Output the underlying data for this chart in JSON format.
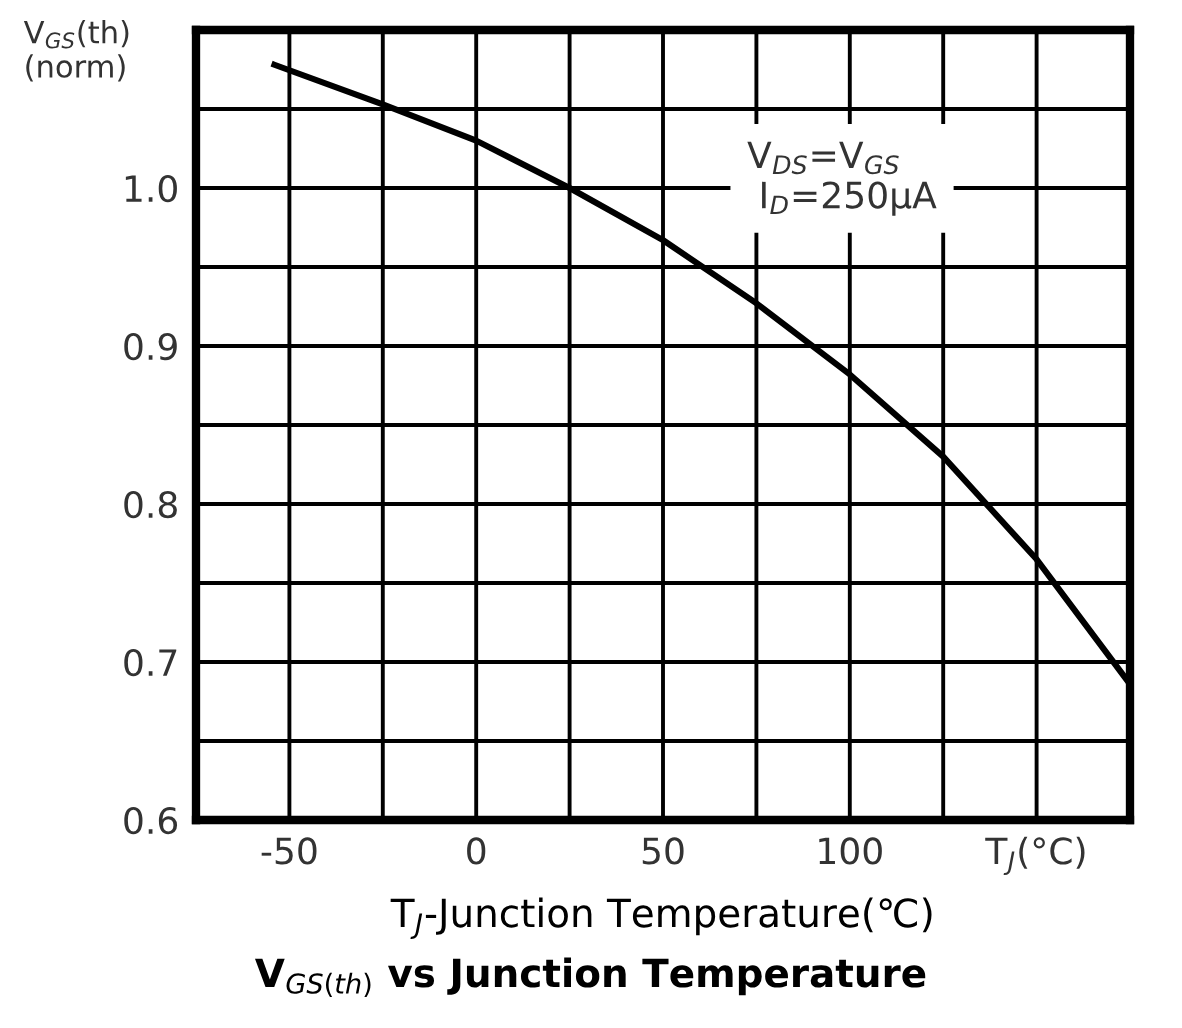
{
  "chart_data": {
    "type": "line",
    "title": "V$_{GS(th)}$ vs Junction Temperature",
    "xlabel": "T$_{J}$-Junction Temperature(℃)",
    "ylabel": "V$_{GS}$(th)\n(norm)",
    "annotations": [
      "V$_{DS}$=V$_{GS}$\n I$_{D}$=250μA"
    ],
    "x": [
      -54,
      -25,
      0,
      25,
      50,
      75,
      100,
      125,
      150,
      175
    ],
    "series": [
      {
        "color": "#000000",
        "values": [
          1.078,
          1.053,
          1.03,
          1.0,
          0.967,
          0.927,
          0.882,
          0.83,
          0.765,
          0.686
        ]
      }
    ],
    "xlim": [
      -75,
      175
    ],
    "xticks": [
      {
        "value": -75,
        "label": null
      },
      -50,
      {
        "value": -25,
        "label": null
      },
      0,
      {
        "value": 25,
        "label": null
      },
      50,
      {
        "value": 75,
        "label": null
      },
      100,
      {
        "value": 125,
        "label": null
      },
      {
        "value": 150,
        "label": "T$_{J}$(°C)"
      },
      {
        "value": 175,
        "label": null
      }
    ],
    "ylim": [
      0.6,
      1.1
    ],
    "yticks": [
      {
        "value": 0.6,
        "label": "0.6"
      },
      {
        "value": 0.65,
        "label": null
      },
      {
        "value": 0.7,
        "label": "0.7"
      },
      {
        "value": 0.75,
        "label": null
      },
      {
        "value": 0.8,
        "label": "0.8"
      },
      {
        "value": 0.85,
        "label": null
      },
      {
        "value": 0.9,
        "label": "0.9"
      },
      {
        "value": 0.95,
        "label": null
      },
      {
        "value": 1.0,
        "label": "1.0"
      },
      {
        "value": 1.05,
        "label": null
      },
      {
        "value": 1.1,
        "label": null
      }
    ],
    "grid": true,
    "marker": "none",
    "line_style": "solid"
  }
}
